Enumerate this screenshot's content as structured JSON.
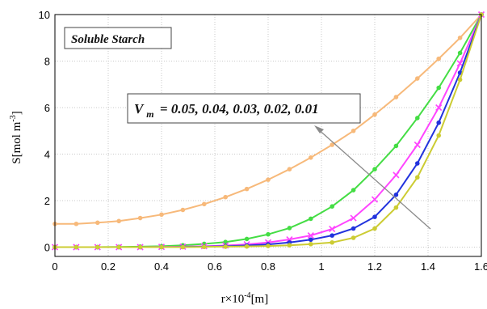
{
  "chart_data": {
    "type": "line",
    "xlabel": {
      "base": "r×10",
      "exp": "-4",
      "unit": "[m]"
    },
    "ylabel": {
      "base": "S[mol m",
      "exp": "-3",
      "unit": "]"
    },
    "xlim": [
      0,
      1.6
    ],
    "ylim": [
      -0.4,
      10
    ],
    "x_ticks": [
      "0",
      "0.2",
      "0.4",
      "0.6",
      "0.8",
      "1",
      "1.2",
      "1.4",
      "1.6"
    ],
    "y_ticks": [
      "0",
      "2",
      "4",
      "6",
      "8",
      "10"
    ],
    "grid": true,
    "annotations": {
      "box_label": "Soluble Starch",
      "vm_symbol": "V",
      "vm_sub": "m",
      "vm_values": "= 0.05, 0.04, 0.03, 0.02, 0.01"
    },
    "x": [
      0,
      0.08,
      0.16,
      0.24,
      0.32,
      0.4,
      0.48,
      0.56,
      0.64,
      0.72,
      0.8,
      0.88,
      0.96,
      1.04,
      1.12,
      1.2,
      1.28,
      1.36,
      1.44,
      1.52,
      1.6
    ],
    "series": [
      {
        "color": "#f7b97a",
        "marker": "circle",
        "values": [
          1.0,
          1.0,
          1.05,
          1.12,
          1.25,
          1.4,
          1.6,
          1.85,
          2.15,
          2.5,
          2.9,
          3.35,
          3.85,
          4.4,
          5.0,
          5.7,
          6.45,
          7.25,
          8.1,
          9.0,
          10.0
        ]
      },
      {
        "color": "#44dd44",
        "marker": "circle",
        "values": [
          0.0,
          0.0,
          0.0,
          0.01,
          0.02,
          0.04,
          0.08,
          0.14,
          0.22,
          0.35,
          0.55,
          0.82,
          1.22,
          1.75,
          2.45,
          3.35,
          4.35,
          5.55,
          6.85,
          8.35,
          10.0
        ]
      },
      {
        "color": "#ff44ff",
        "marker": "x",
        "values": [
          0.0,
          0.0,
          0.0,
          0.0,
          0.0,
          0.01,
          0.02,
          0.04,
          0.07,
          0.12,
          0.2,
          0.33,
          0.5,
          0.78,
          1.25,
          2.05,
          3.1,
          4.4,
          6.0,
          7.9,
          10.0
        ]
      },
      {
        "color": "#2233dd",
        "marker": "circle",
        "values": [
          0.0,
          0.0,
          0.0,
          0.0,
          0.0,
          0.0,
          0.01,
          0.02,
          0.04,
          0.07,
          0.12,
          0.2,
          0.32,
          0.5,
          0.8,
          1.3,
          2.25,
          3.6,
          5.35,
          7.5,
          10.0
        ]
      },
      {
        "color": "#cccc33",
        "marker": "circle",
        "values": [
          0.0,
          0.0,
          0.0,
          0.0,
          0.0,
          0.0,
          0.0,
          0.01,
          0.02,
          0.03,
          0.05,
          0.08,
          0.13,
          0.2,
          0.4,
          0.8,
          1.7,
          3.0,
          4.8,
          7.2,
          10.0
        ]
      }
    ]
  }
}
